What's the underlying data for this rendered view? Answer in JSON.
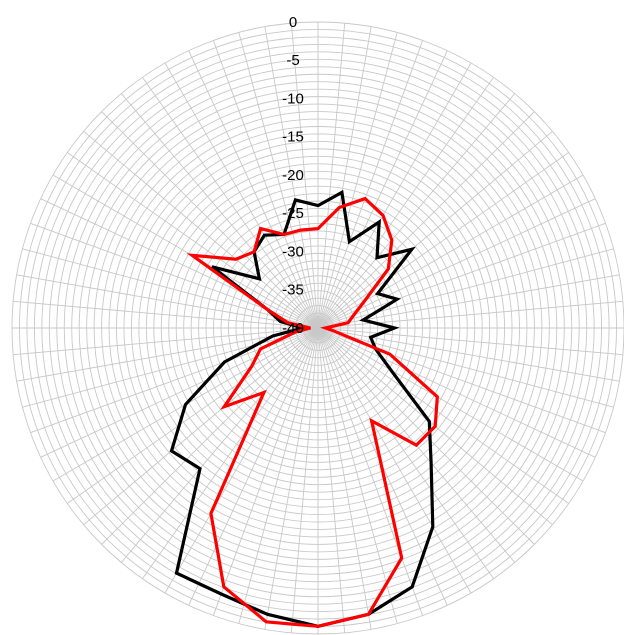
{
  "chart_data": {
    "type": "radar",
    "title": "",
    "r_axis": {
      "min": -40,
      "max": 0,
      "ticks": [
        0,
        -5,
        -10,
        -15,
        -20,
        -25,
        -30,
        -35,
        -40
      ],
      "tick_labels": [
        "0",
        "-5",
        "-10",
        "-15",
        "-20",
        "-25",
        "-30",
        "-35",
        "-40"
      ]
    },
    "angle_unit": "deg",
    "angle_zero": "top",
    "angle_direction": "clockwise",
    "angular_gridlines": 72,
    "radial_grid_rings": 41,
    "grid": true,
    "legend": "none",
    "series": [
      {
        "color": "#000000",
        "points": [
          [
            0,
            -24
          ],
          [
            10,
            -22
          ],
          [
            20,
            -28
          ],
          [
            30,
            -24
          ],
          [
            40,
            -28
          ],
          [
            50,
            -24
          ],
          [
            60,
            -31
          ],
          [
            70,
            -29
          ],
          [
            80,
            -34
          ],
          [
            90,
            -30
          ],
          [
            100,
            -33
          ],
          [
            110,
            -32
          ],
          [
            120,
            -29
          ],
          [
            130,
            -21
          ],
          [
            140,
            -17
          ],
          [
            150,
            -10
          ],
          [
            160,
            -4
          ],
          [
            170,
            -2
          ],
          [
            180,
            -1
          ],
          [
            190,
            -2
          ],
          [
            200,
            -3
          ],
          [
            210,
            -3
          ],
          [
            220,
            -16
          ],
          [
            230,
            -15
          ],
          [
            240,
            -20
          ],
          [
            250,
            -27
          ],
          [
            260,
            -34
          ],
          [
            270,
            -38
          ],
          [
            280,
            -35
          ],
          [
            290,
            -33
          ],
          [
            300,
            -24
          ],
          [
            310,
            -30
          ],
          [
            320,
            -27
          ],
          [
            330,
            -26
          ],
          [
            340,
            -27
          ],
          [
            350,
            -23
          ]
        ]
      },
      {
        "color": "#ff0000",
        "points": [
          [
            0,
            -27
          ],
          [
            10,
            -24
          ],
          [
            20,
            -22
          ],
          [
            30,
            -23
          ],
          [
            40,
            -25
          ],
          [
            50,
            -28
          ],
          [
            60,
            -33
          ],
          [
            70,
            -35
          ],
          [
            80,
            -36
          ],
          [
            90,
            -39
          ],
          [
            100,
            -38
          ],
          [
            110,
            -30
          ],
          [
            120,
            -22
          ],
          [
            130,
            -20
          ],
          [
            140,
            -20
          ],
          [
            150,
            -26
          ],
          [
            160,
            -8
          ],
          [
            170,
            -2
          ],
          [
            180,
            -1
          ],
          [
            190,
            -1
          ],
          [
            200,
            -4
          ],
          [
            210,
            -12
          ],
          [
            220,
            -29
          ],
          [
            230,
            -24
          ],
          [
            240,
            -30
          ],
          [
            250,
            -32
          ],
          [
            260,
            -37
          ],
          [
            270,
            -39
          ],
          [
            280,
            -36
          ],
          [
            290,
            -33
          ],
          [
            300,
            -21
          ],
          [
            310,
            -26
          ],
          [
            320,
            -27
          ],
          [
            330,
            -25
          ],
          [
            340,
            -27
          ],
          [
            350,
            -27
          ]
        ]
      }
    ]
  }
}
